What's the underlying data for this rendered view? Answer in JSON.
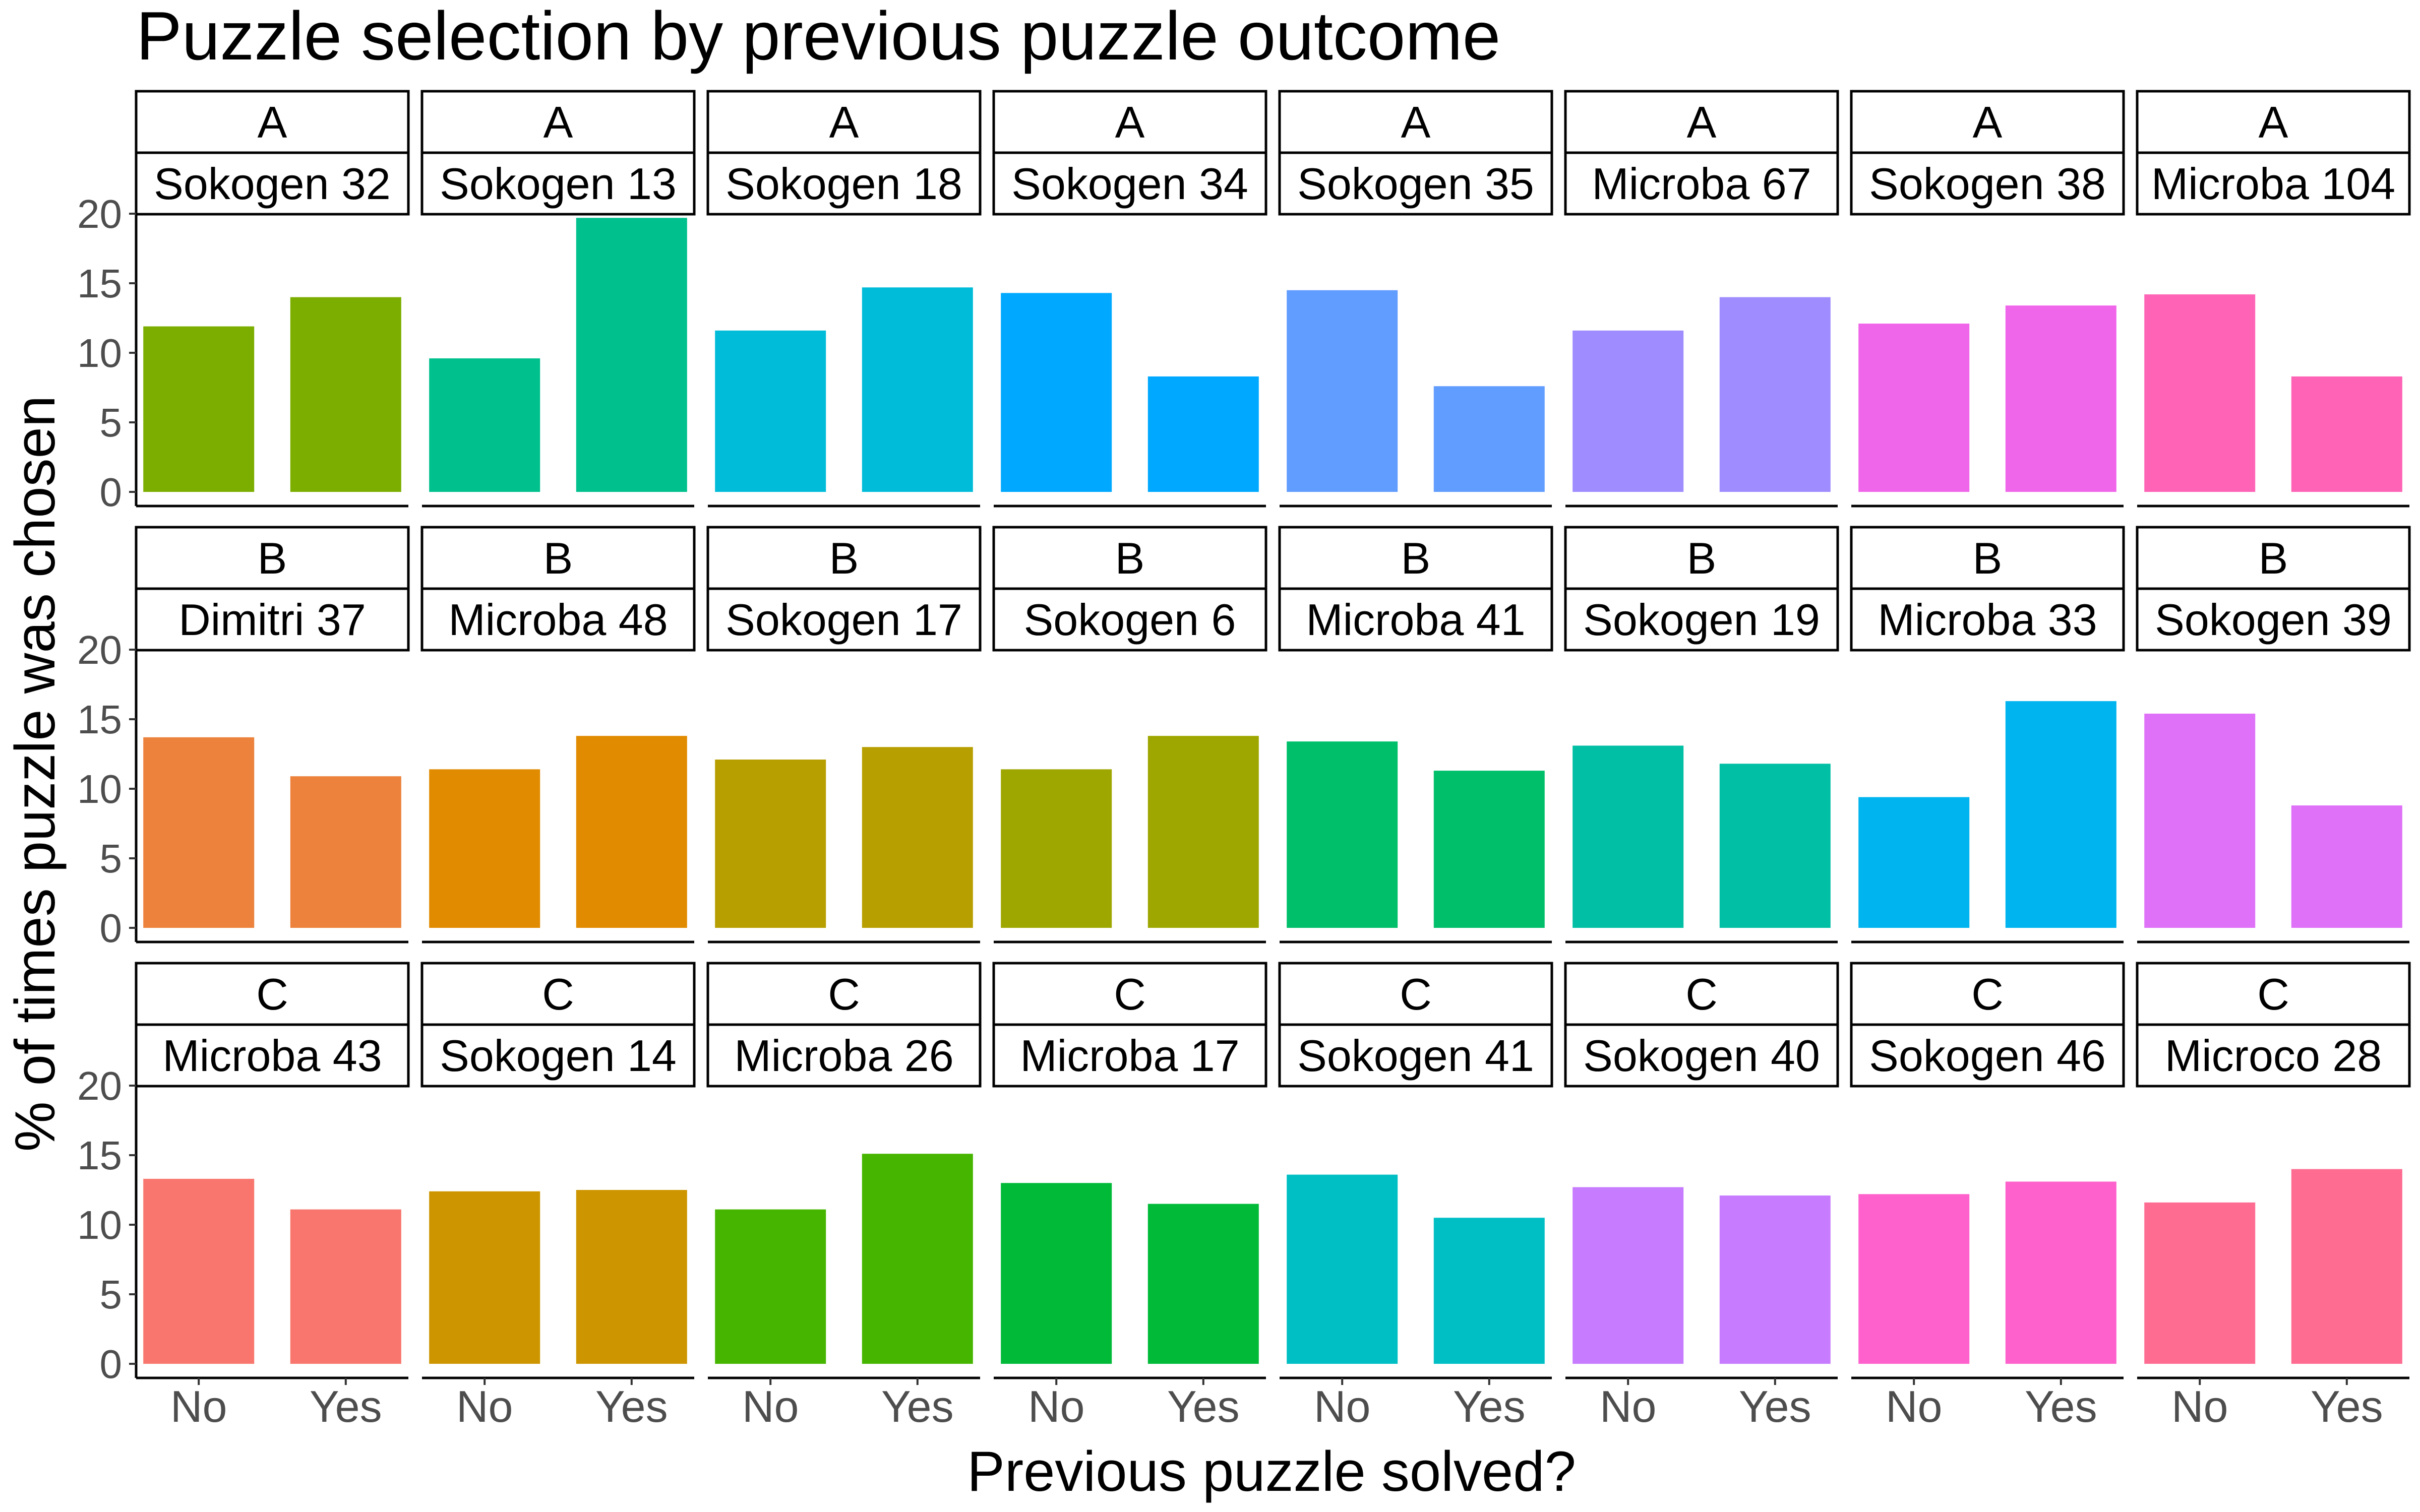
{
  "chart_data": {
    "type": "bar",
    "title": "Puzzle selection by previous puzzle outcome",
    "xlabel": "Previous puzzle solved?",
    "ylabel": "% of times puzzle was chosen",
    "categories": [
      "No",
      "Yes"
    ],
    "ylim": [
      0,
      20
    ],
    "yticks": [
      "0",
      "5",
      "10",
      "15",
      "20"
    ],
    "grid": false,
    "legend": "none",
    "facets": [
      {
        "group": "A",
        "puzzle": "Sokogen 32",
        "values": [
          11.9,
          14.0
        ],
        "color": "#7CAE00"
      },
      {
        "group": "A",
        "puzzle": "Sokogen 13",
        "values": [
          9.6,
          19.7
        ],
        "color": "#00C08D"
      },
      {
        "group": "A",
        "puzzle": "Sokogen 18",
        "values": [
          11.6,
          14.7
        ],
        "color": "#00BCD8"
      },
      {
        "group": "A",
        "puzzle": "Sokogen 34",
        "values": [
          14.3,
          8.3
        ],
        "color": "#00A9FF"
      },
      {
        "group": "A",
        "puzzle": "Sokogen 35",
        "values": [
          14.5,
          7.6
        ],
        "color": "#619CFF"
      },
      {
        "group": "A",
        "puzzle": "Microba 67",
        "values": [
          11.6,
          14.0
        ],
        "color": "#9F8CFF"
      },
      {
        "group": "A",
        "puzzle": "Sokogen 38",
        "values": [
          12.1,
          13.4
        ],
        "color": "#F066EA"
      },
      {
        "group": "A",
        "puzzle": "Microba 104",
        "values": [
          14.2,
          8.3
        ],
        "color": "#FF63B6"
      },
      {
        "group": "B",
        "puzzle": "Dimitri 37",
        "values": [
          13.7,
          10.9
        ],
        "color": "#EC823C"
      },
      {
        "group": "B",
        "puzzle": "Microba 48",
        "values": [
          11.4,
          13.8
        ],
        "color": "#E08B00"
      },
      {
        "group": "B",
        "puzzle": "Sokogen 17",
        "values": [
          12.1,
          13.0
        ],
        "color": "#B79F00"
      },
      {
        "group": "B",
        "puzzle": "Sokogen 6",
        "values": [
          11.4,
          13.8
        ],
        "color": "#9EA700"
      },
      {
        "group": "B",
        "puzzle": "Microba 41",
        "values": [
          13.4,
          11.3
        ],
        "color": "#00BF6A"
      },
      {
        "group": "B",
        "puzzle": "Sokogen 19",
        "values": [
          13.1,
          11.8
        ],
        "color": "#00BFA4"
      },
      {
        "group": "B",
        "puzzle": "Microba 33",
        "values": [
          9.4,
          16.3
        ],
        "color": "#00B4EF"
      },
      {
        "group": "B",
        "puzzle": "Sokogen 39",
        "values": [
          15.4,
          8.8
        ],
        "color": "#DF70F8"
      },
      {
        "group": "C",
        "puzzle": "Microba 43",
        "values": [
          13.3,
          11.1
        ],
        "color": "#F8766D"
      },
      {
        "group": "C",
        "puzzle": "Sokogen 14",
        "values": [
          12.4,
          12.5
        ],
        "color": "#CD9600"
      },
      {
        "group": "C",
        "puzzle": "Microba 26",
        "values": [
          11.1,
          15.1
        ],
        "color": "#45B500"
      },
      {
        "group": "C",
        "puzzle": "Microba 17",
        "values": [
          13.0,
          11.5
        ],
        "color": "#00BA38"
      },
      {
        "group": "C",
        "puzzle": "Sokogen 41",
        "values": [
          13.6,
          10.5
        ],
        "color": "#00BFC4"
      },
      {
        "group": "C",
        "puzzle": "Sokogen 40",
        "values": [
          12.7,
          12.1
        ],
        "color": "#C77CFF"
      },
      {
        "group": "C",
        "puzzle": "Sokogen 46",
        "values": [
          12.2,
          13.1
        ],
        "color": "#FF61CC"
      },
      {
        "group": "C",
        "puzzle": "Microco 28",
        "values": [
          11.6,
          14.0
        ],
        "color": "#FF6C91"
      }
    ]
  }
}
